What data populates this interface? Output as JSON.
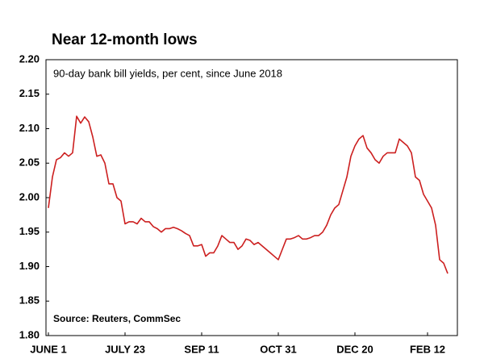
{
  "chart_data": {
    "type": "line",
    "title": "Near 12-month lows",
    "subtitle": "90-day bank bill yields, per cent, since June 2018",
    "source": "Source: Reuters, CommSec",
    "color": "#cc1f1f",
    "grid": false,
    "categories": [
      "JUNE 1",
      null,
      null,
      null,
      null,
      null,
      null,
      null,
      null,
      null,
      null,
      null,
      null,
      null,
      null,
      null,
      null,
      null,
      null,
      "JULY 23",
      null,
      null,
      null,
      null,
      null,
      null,
      null,
      null,
      null,
      null,
      null,
      null,
      null,
      null,
      null,
      null,
      null,
      null,
      "SEP 11",
      null,
      null,
      null,
      null,
      null,
      null,
      null,
      null,
      null,
      null,
      null,
      null,
      null,
      null,
      null,
      null,
      null,
      null,
      "OCT 31",
      null,
      null,
      null,
      null,
      null,
      null,
      null,
      null,
      null,
      null,
      null,
      null,
      null,
      null,
      null,
      null,
      null,
      null,
      "DEC 20",
      null,
      null,
      null,
      null,
      null,
      null,
      null,
      null,
      null,
      null,
      null,
      null,
      null,
      null,
      null,
      null,
      null,
      "FEB 12",
      null,
      null,
      null,
      null,
      null
    ],
    "values": [
      1.985,
      2.03,
      2.055,
      2.058,
      2.065,
      2.06,
      2.065,
      2.118,
      2.108,
      2.117,
      2.11,
      2.088,
      2.06,
      2.062,
      2.05,
      2.02,
      2.02,
      2.0,
      1.995,
      1.962,
      1.965,
      1.965,
      1.962,
      1.97,
      1.965,
      1.965,
      1.958,
      1.955,
      1.95,
      1.955,
      1.955,
      1.957,
      1.955,
      1.952,
      1.948,
      1.945,
      1.93,
      1.93,
      1.932,
      1.915,
      1.92,
      1.92,
      1.93,
      1.945,
      1.94,
      1.935,
      1.935,
      1.925,
      1.93,
      1.94,
      1.938,
      1.932,
      1.935,
      1.93,
      1.925,
      1.92,
      1.915,
      1.91,
      1.925,
      1.94,
      1.94,
      1.942,
      1.945,
      1.94,
      1.94,
      1.942,
      1.945,
      1.945,
      1.95,
      1.96,
      1.975,
      1.985,
      1.99,
      2.01,
      2.03,
      2.06,
      2.075,
      2.085,
      2.09,
      2.072,
      2.065,
      2.055,
      2.05,
      2.06,
      2.065,
      2.065,
      2.065,
      2.085,
      2.08,
      2.075,
      2.065,
      2.03,
      2.025,
      2.005,
      1.995,
      1.985,
      1.96,
      1.91,
      1.905,
      1.89
    ],
    "ylim": [
      1.8,
      2.2
    ],
    "yticks": [
      {
        "value": 1.8,
        "label": "1.80"
      },
      1.85,
      {
        "value": 1.9,
        "label": "1.90"
      },
      1.95,
      {
        "value": 2.0,
        "label": "2.00"
      },
      2.05,
      {
        "value": 2.1,
        "label": "2.10"
      },
      2.15,
      {
        "value": 2.2,
        "label": "2.20"
      }
    ]
  }
}
